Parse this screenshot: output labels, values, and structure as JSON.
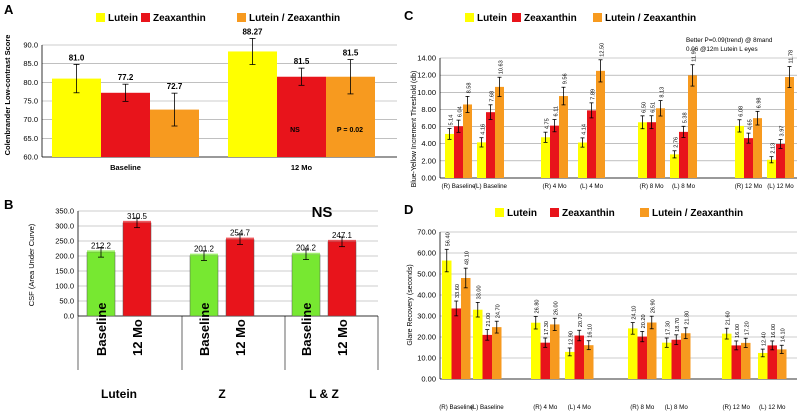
{
  "colors": {
    "yellow": "#ffff00",
    "red": "#e8141b",
    "orange": "#f79a1f",
    "green": "#77e831",
    "grid": "#9a9a9a"
  },
  "chart_data": [
    {
      "panel_label": "A",
      "type": "bar",
      "ylabel": "Colenbrander Low-contrast Score",
      "ylim": [
        60,
        90
      ],
      "yticks": [
        "60.0",
        "65.0",
        "70.0",
        "75.0",
        "80.0",
        "85.0",
        "90.0"
      ],
      "grid": true,
      "legend_position": "top",
      "categories": [
        "Baseline",
        "12 Mo"
      ],
      "series": [
        {
          "name": "Lutein",
          "color": "yellow",
          "values": [
            81.0,
            88.27
          ],
          "errors": [
            3.8,
            3.5
          ],
          "labels": [
            "81.0",
            "88.27"
          ]
        },
        {
          "name": "Zeaxanthin",
          "color": "red",
          "values": [
            77.2,
            81.5
          ],
          "errors": [
            2.3,
            2.3
          ],
          "labels": [
            "77.2",
            "81.5"
          ]
        },
        {
          "name": "Lutein / Zeaxanthin",
          "color": "orange",
          "values": [
            72.7,
            81.5
          ],
          "errors": [
            4.4,
            4.6
          ],
          "labels": [
            "72.7",
            "81.5"
          ]
        }
      ],
      "annotations": [
        "NS",
        "P = 0.02"
      ]
    },
    {
      "panel_label": "B",
      "type": "bar",
      "ylabel": "CSF (Area Under Curve)",
      "ylim": [
        0,
        350
      ],
      "yticks": [
        "0.0",
        "50.0",
        "100.0",
        "150.0",
        "200.0",
        "250.0",
        "300.0",
        "350.0"
      ],
      "grid": true,
      "groups": [
        {
          "name": "Lutein",
          "bars": [
            {
              "label": "Baseline",
              "value": 212.2,
              "color": "green"
            },
            {
              "label": "12 Mo",
              "value": 310.5,
              "color": "red"
            }
          ]
        },
        {
          "name": "Z",
          "bars": [
            {
              "label": "Baseline",
              "value": 201.2,
              "color": "green"
            },
            {
              "label": "12 Mo",
              "value": 254.7,
              "color": "red"
            }
          ]
        },
        {
          "name": "L & Z",
          "bars": [
            {
              "label": "Baseline",
              "value": 204.2,
              "color": "green"
            },
            {
              "label": "12 Mo",
              "value": 247.1,
              "color": "red"
            }
          ]
        }
      ],
      "errors": [
        16,
        16,
        16,
        16,
        16,
        16
      ],
      "annotation": "NS"
    },
    {
      "panel_label": "C",
      "type": "bar",
      "ylabel": "Blue-Yellow Increment Threshold (db)",
      "ylim": [
        0,
        14
      ],
      "yticks": [
        "0.00",
        "2.00",
        "4.00",
        "6.00",
        "8.00",
        "10.00",
        "12.00",
        "14.00"
      ],
      "grid": true,
      "legend_position": "top",
      "note_line1": "Better P=0.09(trend) @ 8mand",
      "note_line2": "0.06 @12m  Lutein L eyes",
      "categories": [
        "(R) Baseline",
        "(L) Baseline",
        "(R) 4 Mo",
        "(L) 4 Mo",
        "(R) 8 Mo",
        "(L) 8 Mo",
        "(R) 12 Mo",
        "(L) 12 Mo"
      ],
      "series": [
        {
          "name": "Lutein",
          "color": "yellow",
          "values": [
            5.14,
            4.16,
            4.75,
            4.14,
            6.5,
            2.76,
            6.08,
            2.13
          ],
          "labels": [
            "5.14",
            "4.16",
            "4.75",
            "4.14",
            "6.50",
            "2.76",
            "6.08",
            "2.13"
          ]
        },
        {
          "name": "Zeaxanthin",
          "color": "red",
          "values": [
            6.04,
            7.68,
            6.11,
            7.89,
            6.51,
            5.38,
            4.65,
            3.97
          ],
          "labels": [
            "6.04",
            "7.68",
            "6.11",
            "7.89",
            "6.51",
            "5.38",
            "4.65",
            "3.97"
          ]
        },
        {
          "name": "Lutein / Zeaxanthin",
          "color": "orange",
          "values": [
            8.58,
            10.63,
            9.56,
            12.5,
            8.13,
            11.97,
            6.98,
            11.78
          ],
          "labels": [
            "8.58",
            "10.63",
            "9.56",
            "12.50",
            "8.13",
            "11.97",
            "6.98",
            "11.78"
          ]
        }
      ]
    },
    {
      "panel_label": "D",
      "type": "bar",
      "ylabel": "Glare Recovery (seconds)",
      "ylim": [
        0,
        70
      ],
      "yticks": [
        "0.00",
        "10.00",
        "20.00",
        "30.00",
        "40.00",
        "50.00",
        "60.00",
        "70.00"
      ],
      "grid": true,
      "legend_position": "top",
      "categories": [
        "(R) Baseline",
        "(L) Baseline",
        "(R) 4 Mo",
        "(L) 4 Mo",
        "(R) 8 Mo",
        "(L) 8 Mo",
        "(R) 12 Mo",
        "(L) 12 Mo"
      ],
      "series": [
        {
          "name": "Lutein",
          "color": "yellow",
          "values": [
            56.4,
            33.0,
            26.8,
            12.9,
            24.1,
            17.3,
            21.6,
            12.4
          ],
          "labels": [
            "56.40",
            "33.00",
            "26.80",
            "12.90",
            "24.10",
            "17.30",
            "21.60",
            "12.40"
          ]
        },
        {
          "name": "Zeaxanthin",
          "color": "red",
          "values": [
            33.6,
            21.0,
            17.3,
            20.7,
            20.2,
            18.7,
            16.0,
            16.0
          ],
          "labels": [
            "33.60",
            "21.00",
            "17.30",
            "20.70",
            "20.20",
            "18.70",
            "16.00",
            "16.00"
          ]
        },
        {
          "name": "Lutein / Zeaxanthin",
          "color": "orange",
          "values": [
            48.1,
            24.7,
            26.0,
            16.1,
            26.9,
            21.8,
            17.2,
            14.1
          ],
          "labels": [
            "48.10",
            "24.70",
            "26.00",
            "16.10",
            "26.90",
            "21.80",
            "17.20",
            "14.10"
          ]
        }
      ]
    }
  ]
}
